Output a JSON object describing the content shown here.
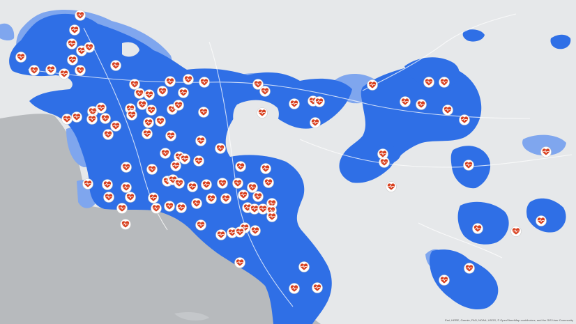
{
  "map": {
    "colors": {
      "land": "#e6e8ea",
      "ocean": "#b7babd",
      "service_area": "#2f6fe6",
      "service_area_light": "#7fa6ee",
      "marker_ring": "#ffffff",
      "marker_heart": "#d8401f"
    },
    "marker_icon": "heart-ekg-icon",
    "attribution": "Esri, HERE, Garmin, FAO, NOAA, USGS, © OpenStreetMap contributors, and the GIS User Community"
  }
}
